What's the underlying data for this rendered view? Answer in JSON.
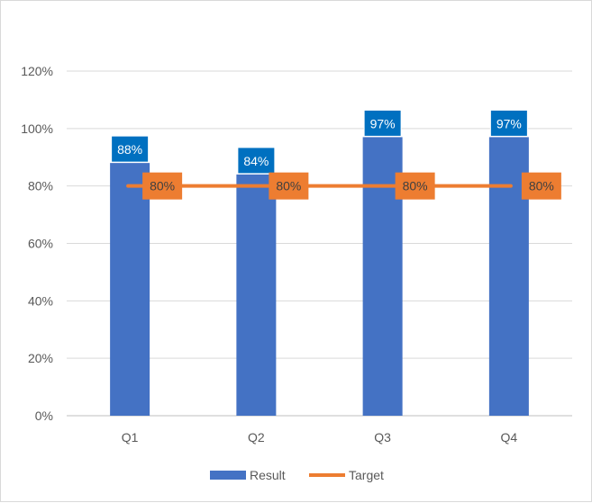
{
  "chart_data": {
    "type": "bar",
    "categories": [
      "Q1",
      "Q2",
      "Q3",
      "Q4"
    ],
    "series": [
      {
        "name": "Result",
        "kind": "bar",
        "values": [
          88,
          84,
          97,
          97
        ],
        "labels": [
          "88%",
          "84%",
          "97%",
          "97%"
        ],
        "color": "#4472C4",
        "label_bg": "#0070C0",
        "label_color": "#FFFFFF"
      },
      {
        "name": "Target",
        "kind": "line",
        "values": [
          80,
          80,
          80,
          80
        ],
        "labels": [
          "80%",
          "80%",
          "80%",
          "80%"
        ],
        "color": "#ED7D31",
        "label_bg": "#ED7D31",
        "label_color": "#404040"
      }
    ],
    "y_ticks": [
      "0%",
      "20%",
      "40%",
      "60%",
      "80%",
      "100%",
      "120%"
    ],
    "ylim": [
      0,
      120
    ],
    "grid": true,
    "legend_position": "bottom",
    "title": "",
    "xlabel": "",
    "ylabel": ""
  }
}
